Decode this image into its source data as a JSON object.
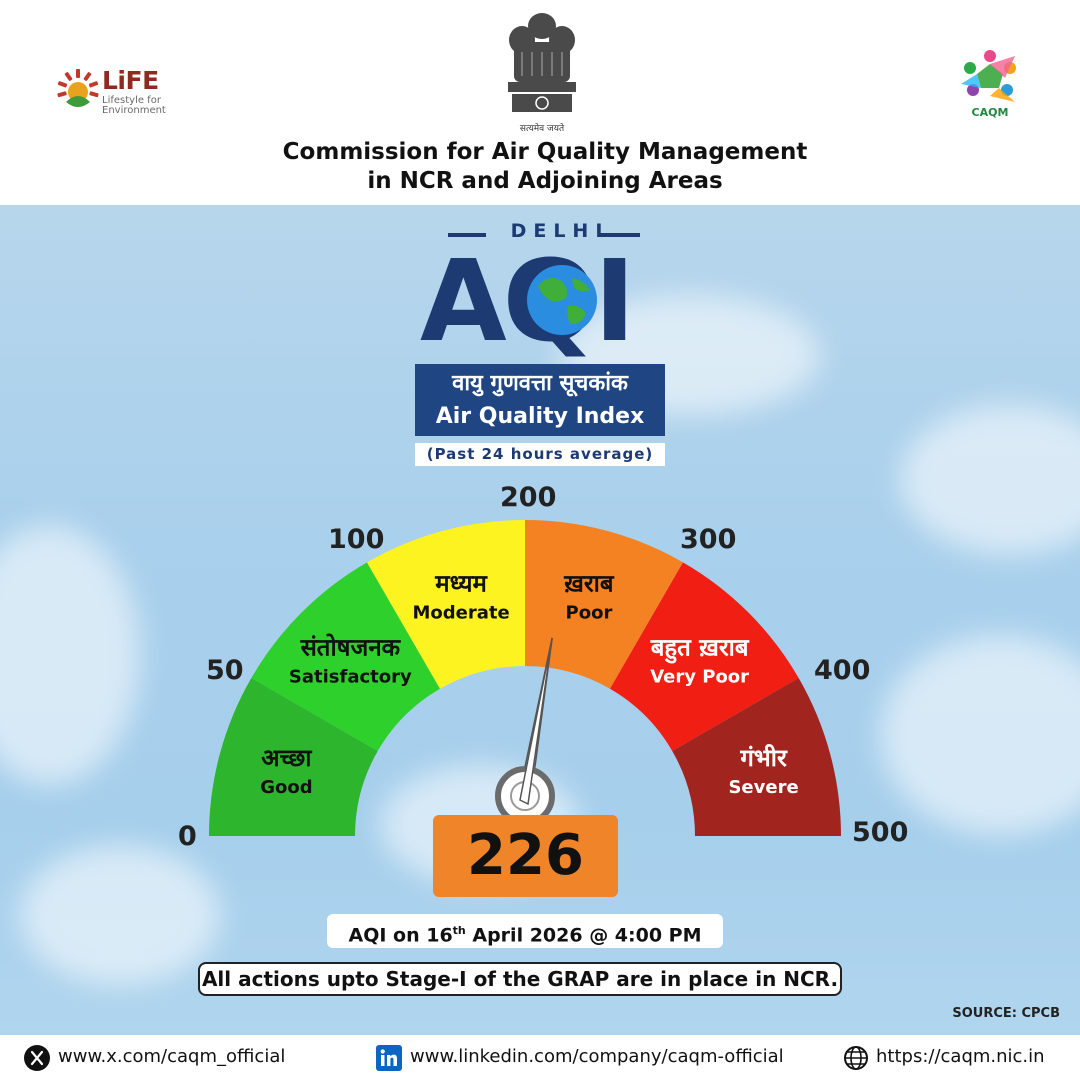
{
  "header": {
    "life_logo_text": "LiFE",
    "life_logo_subtitle": "Lifestyle for Environment",
    "emblem_motto": "सत्यमेव जयते",
    "caqm_logo_text": "CAQM",
    "org_line1": "Commission for Air Quality Management",
    "org_line2": "in NCR and Adjoining Areas"
  },
  "title": {
    "city": "DELHI",
    "aqi": "AQI",
    "index_hindi": "वायु गुणवत्ता सूचकांक",
    "index_english": "Air Quality Index",
    "period": "(Past 24 hours average)"
  },
  "gauge": {
    "scale": [
      0,
      500
    ],
    "ticks": [
      "0",
      "50",
      "100",
      "200",
      "300",
      "400",
      "500"
    ],
    "categories": [
      {
        "from": 0,
        "to": 50,
        "hindi": "अच्छा",
        "english": "Good",
        "color": "#2db52d"
      },
      {
        "from": 50,
        "to": 100,
        "hindi": "संतोषजनक",
        "english": "Satisfactory",
        "color": "#2ed02b"
      },
      {
        "from": 100,
        "to": 200,
        "hindi": "मध्यम",
        "english": "Moderate",
        "color": "#fdf321"
      },
      {
        "from": 200,
        "to": 300,
        "hindi": "ख़राब",
        "english": "Poor",
        "color": "#f48222"
      },
      {
        "from": 300,
        "to": 400,
        "hindi": "बहुत ख़राब",
        "english": "Very Poor",
        "color": "#f11e14"
      },
      {
        "from": 400,
        "to": 500,
        "hindi": "गंभीर",
        "english": "Severe",
        "color": "#a1241e"
      }
    ],
    "value": 226,
    "value_display": "226",
    "value_color": "#f08428"
  },
  "date_prefix": "AQI on 16",
  "date_sup": "th",
  "date_suffix": " April 2026 @ 4:00 PM",
  "grap_notice": "All actions upto Stage-I of the GRAP are in place in NCR.",
  "source": "SOURCE: CPCB",
  "footer": {
    "x_url": "www.x.com/caqm_official",
    "linkedin_url": "www.linkedin.com/company/caqm-official",
    "web_url": "https://caqm.nic.in"
  }
}
